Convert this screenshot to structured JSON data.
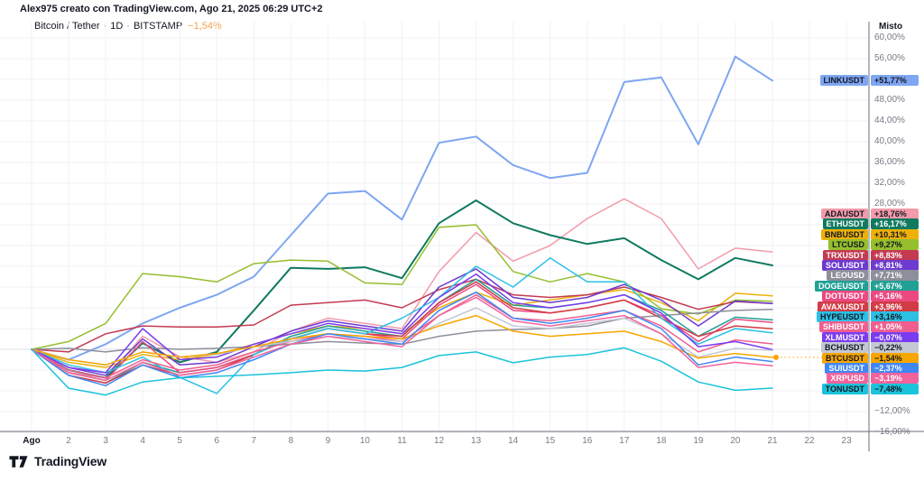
{
  "watermark": {
    "text": "Alex975 creato con TradingView.com, Ago 21, 2025 06:29 UTC+2"
  },
  "symbol_legend": {
    "pair": "Bitcoin / Tether",
    "separator": "·",
    "timeframe": "1D",
    "exchange": "BITSTAMP",
    "change": "−1,54%",
    "change_color": "#F7A24B"
  },
  "price_scale": {
    "mode_label": "Misto",
    "ticks": [
      {
        "label": "60,00%",
        "value": 60
      },
      {
        "label": "56,00%",
        "value": 56
      },
      {
        "label": "48,00%",
        "value": 48
      },
      {
        "label": "44,00%",
        "value": 44
      },
      {
        "label": "40,00%",
        "value": 40
      },
      {
        "label": "36,00%",
        "value": 36
      },
      {
        "label": "32,00%",
        "value": 32
      },
      {
        "label": "28,00%",
        "value": 28
      },
      {
        "label": "−12,00%",
        "value": -12
      },
      {
        "label": "−16,00%",
        "value": -16
      }
    ]
  },
  "time_scale": {
    "ticks": [
      {
        "label": "Ago",
        "day": 1,
        "month_start": true
      },
      {
        "label": "2",
        "day": 2
      },
      {
        "label": "3",
        "day": 3
      },
      {
        "label": "4",
        "day": 4
      },
      {
        "label": "5",
        "day": 5
      },
      {
        "label": "6",
        "day": 6
      },
      {
        "label": "7",
        "day": 7
      },
      {
        "label": "8",
        "day": 8
      },
      {
        "label": "9",
        "day": 9
      },
      {
        "label": "10",
        "day": 10
      },
      {
        "label": "11",
        "day": 11
      },
      {
        "label": "12",
        "day": 12
      },
      {
        "label": "13",
        "day": 13
      },
      {
        "label": "14",
        "day": 14
      },
      {
        "label": "15",
        "day": 15
      },
      {
        "label": "16",
        "day": 16
      },
      {
        "label": "17",
        "day": 17
      },
      {
        "label": "18",
        "day": 18
      },
      {
        "label": "19",
        "day": 19
      },
      {
        "label": "20",
        "day": 20
      },
      {
        "label": "21",
        "day": 21
      },
      {
        "label": "22",
        "day": 22
      },
      {
        "label": "23",
        "day": 23
      }
    ]
  },
  "logo": {
    "text": "TradingView"
  },
  "chart_data": {
    "type": "line",
    "title": "Crypto pairs percent performance comparison, August 2025",
    "x_unit": "day of August 2025",
    "x": [
      1,
      2,
      3,
      4,
      5,
      6,
      7,
      8,
      9,
      10,
      11,
      12,
      13,
      14,
      15,
      16,
      17,
      18,
      19,
      20,
      21
    ],
    "ylim": [
      -16,
      60
    ],
    "grid": true,
    "legend_position": "right-price-scale",
    "series": [
      {
        "name": "LINKUSDT",
        "change": "+51,77%",
        "color": "#7EA6F2",
        "values": [
          0,
          -2,
          1,
          5,
          8,
          10.5,
          14,
          22,
          30,
          30.5,
          25,
          39.8,
          41,
          35.5,
          33,
          34,
          51.5,
          52.4,
          39.5,
          56.4,
          51.77
        ]
      },
      {
        "name": "ADAUSDT",
        "change": "+18,76%",
        "color": "#F29BAA",
        "values": [
          0,
          -4.5,
          -5.5,
          2.5,
          -1.4,
          -2.5,
          -0.5,
          3.5,
          6,
          5,
          4,
          15,
          22.5,
          17,
          20,
          25.2,
          29,
          25.2,
          15.5,
          19.5,
          18.76
        ]
      },
      {
        "name": "ETHUSDT",
        "change": "+16,17%",
        "color": "#107A61",
        "values": [
          0,
          -4,
          -5.5,
          1.2,
          -2.5,
          -0.5,
          7.5,
          15.7,
          15.5,
          15.8,
          13.7,
          24.3,
          28.7,
          24.3,
          22,
          20.3,
          21.4,
          17.2,
          13.5,
          17.6,
          16.17
        ]
      },
      {
        "name": "BNBUSDT",
        "change": "+10,31%",
        "color": "#EDB10A",
        "values": [
          0,
          -2.5,
          -3.5,
          -1,
          -2,
          -1,
          1,
          3,
          4.5,
          4,
          3,
          8,
          11,
          8.5,
          9.5,
          10.5,
          11.5,
          9,
          5.5,
          10.8,
          10.31
        ]
      },
      {
        "name": "LTCUSD",
        "change": "+9,27%",
        "color": "#95BF2D",
        "values": [
          0,
          1.5,
          5,
          14.6,
          14,
          13,
          16.5,
          17.2,
          17,
          12.8,
          12.5,
          23.5,
          24,
          15,
          13,
          14.6,
          13,
          7.8,
          6.8,
          9.5,
          9.27
        ]
      },
      {
        "name": "TRXUSDT",
        "change": "+8,83%",
        "color": "#C43A52",
        "values": [
          0,
          -0.5,
          3,
          4.5,
          4.3,
          4.3,
          4.7,
          8.5,
          9,
          9.5,
          8,
          11.5,
          13.5,
          10.5,
          10,
          10.5,
          12,
          10,
          7.7,
          9.2,
          8.83
        ]
      },
      {
        "name": "SOLUSDT",
        "change": "+8,81%",
        "color": "#6D3BD0",
        "values": [
          0,
          -3.5,
          -5,
          2,
          -3,
          -2.5,
          0.5,
          3.5,
          5.5,
          4.5,
          3.5,
          12,
          15.5,
          10,
          9,
          10,
          12.5,
          9.5,
          4.5,
          9.3,
          8.81
        ]
      },
      {
        "name": "LEOUSD",
        "change": "+7,71%",
        "color": "#8D909B",
        "values": [
          0,
          0.2,
          -0.5,
          0.3,
          0,
          0.2,
          0.5,
          1,
          1.5,
          1.2,
          1,
          2.5,
          3.5,
          3.8,
          4,
          4.5,
          6,
          6.5,
          7,
          7.5,
          7.71
        ]
      },
      {
        "name": "DOGEUSDT",
        "change": "+5,67%",
        "color": "#21A095",
        "values": [
          0,
          -5,
          -6.5,
          -2.5,
          -4.5,
          -3.5,
          -1,
          2.5,
          4.5,
          3.5,
          2.5,
          9,
          13.5,
          8.5,
          8,
          9,
          10.5,
          7.5,
          2.5,
          6.2,
          5.67
        ]
      },
      {
        "name": "DOTUSDT",
        "change": "+5,16%",
        "color": "#EC4980",
        "values": [
          0,
          -4.5,
          -6,
          1.5,
          -4.5,
          -3.5,
          -1,
          2,
          4,
          3,
          2,
          8.5,
          12.5,
          7.5,
          7,
          8,
          9.5,
          6.5,
          1.5,
          5.8,
          5.16
        ]
      },
      {
        "name": "AVAXUSDT",
        "change": "+3,96%",
        "color": "#D23C46",
        "values": [
          0,
          -5,
          -6.5,
          -3,
          -5,
          -4,
          -1,
          2,
          4,
          3,
          2.5,
          9,
          13,
          8,
          7,
          8,
          9.5,
          6,
          2.5,
          4.5,
          3.96
        ]
      },
      {
        "name": "HYPEUSDT",
        "change": "+3,16%",
        "color": "#2BC0E4",
        "values": [
          0,
          -3,
          -4.5,
          -1.5,
          -5.4,
          -8.5,
          -1,
          2,
          4,
          3,
          6,
          10,
          16,
          12,
          17.6,
          13,
          13,
          6,
          1,
          4,
          3.16
        ]
      },
      {
        "name": "SHIBUSDT",
        "change": "+1,05%",
        "color": "#EF5E8E",
        "values": [
          0,
          -4,
          -5.5,
          -2,
          -4,
          -3,
          -0.5,
          1.5,
          3,
          2.5,
          1.5,
          6.5,
          10.5,
          6,
          5.5,
          6.5,
          7.5,
          4.5,
          -0.5,
          1.8,
          1.05
        ]
      },
      {
        "name": "XLMUSDT",
        "change": "−0,07%",
        "color": "#7A3CF0",
        "values": [
          0,
          -3.5,
          -4.5,
          4,
          -2,
          -1.5,
          1,
          3,
          5,
          4,
          3,
          10,
          14.5,
          9,
          8,
          9,
          10.5,
          7,
          0.5,
          1.5,
          -0.07
        ]
      },
      {
        "name": "BCHUSDT",
        "change": "−0,22%",
        "color": "#C3C8D4",
        "values": [
          0,
          -2,
          -3,
          -0.5,
          -1.5,
          -1,
          0.5,
          1.5,
          2.5,
          2,
          1.5,
          5,
          8,
          4.5,
          4,
          5,
          6,
          3,
          -1.5,
          0.2,
          -0.22
        ]
      },
      {
        "name": "BTCUSDT",
        "change": "−1,54%",
        "color": "#F7A600",
        "last_value_marker": true,
        "values": [
          0,
          -2,
          -3,
          -0.5,
          -1.5,
          -0.8,
          0.5,
          2,
          3,
          2.5,
          2,
          4.5,
          6.5,
          3.5,
          2.5,
          3,
          3.5,
          1.5,
          -1.7,
          -0.8,
          -1.54
        ]
      },
      {
        "name": "SUIUSDT",
        "change": "−2,37%",
        "color": "#4187F4",
        "values": [
          0,
          -5,
          -7,
          -3,
          -5.5,
          -4.5,
          -2,
          1,
          3,
          2,
          1,
          7.5,
          11,
          6,
          5,
          6,
          7.5,
          4,
          -3,
          -1.5,
          -2.37
        ]
      },
      {
        "name": "XRPUSD",
        "change": "−3,19%",
        "color": "#F2639C",
        "values": [
          0,
          -4.5,
          -6,
          -2.5,
          -5,
          -4,
          -1.5,
          1,
          2.5,
          1.5,
          0.5,
          6.5,
          10,
          5.5,
          4.5,
          5.5,
          6.5,
          3,
          -3.5,
          -2.5,
          -3.19
        ]
      },
      {
        "name": "TONUSDT",
        "change": "−7,48%",
        "color": "#1AC3DA",
        "values": [
          0,
          -7.5,
          -8.8,
          -6.3,
          -5.5,
          -5.2,
          -4.9,
          -4.5,
          -4,
          -4.2,
          -3.5,
          -1.2,
          -0.5,
          -2.6,
          -1.5,
          -1,
          0.3,
          -2.3,
          -6.3,
          -7.9,
          -7.48
        ]
      }
    ]
  }
}
